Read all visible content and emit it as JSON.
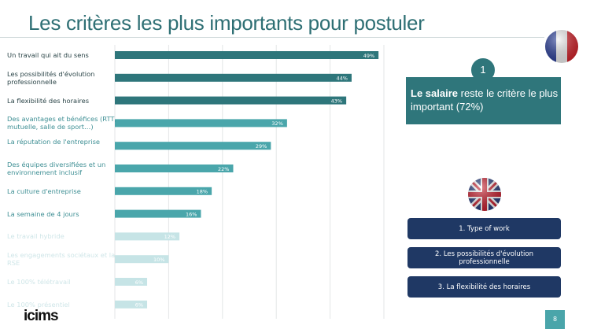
{
  "title": "Les critères les plus importants pour postuler",
  "chart_data": {
    "type": "bar",
    "orientation": "horizontal",
    "categories": [
      "Un travail qui ait du sens",
      "Les possibilités d'évolution professionnelle",
      "La flexibilité des horaires",
      "Des avantages et bénéfices (RTT, mutuelle, salle de sport…)",
      "La réputation de l'entreprise",
      "Des équipes diversifiées et un environnement inclusif",
      "La culture d'entreprise",
      "La semaine de 4 jours",
      "Le travail hybride",
      "Les engagements sociétaux et la RSE",
      "Le 100% télétravail",
      "Le 100% présentiel"
    ],
    "values": [
      49,
      44,
      43,
      32,
      29,
      22,
      18,
      16,
      12,
      10,
      6,
      6
    ],
    "data_labels": [
      "49%",
      "44%",
      "43%",
      "32%",
      "29%",
      "22%",
      "18%",
      "16%",
      "12%",
      "10%",
      "6%",
      "6%"
    ],
    "xlim": [
      0,
      50
    ],
    "grid": true,
    "unit": "%",
    "colors": {
      "top": "#2e767b",
      "mid": "#4aa6ab",
      "low": "#c6e4e6"
    }
  },
  "france": {
    "rank": "1",
    "highlight_bold": "Le salaire",
    "highlight_rest": " reste le critère le plus important (72%)"
  },
  "uk": {
    "items": [
      "1. Type of work",
      "2. Les possibilités d'évolution professionnelle",
      "3. La flexibilité des horaires"
    ]
  },
  "logo": "icims",
  "page_number": "8"
}
